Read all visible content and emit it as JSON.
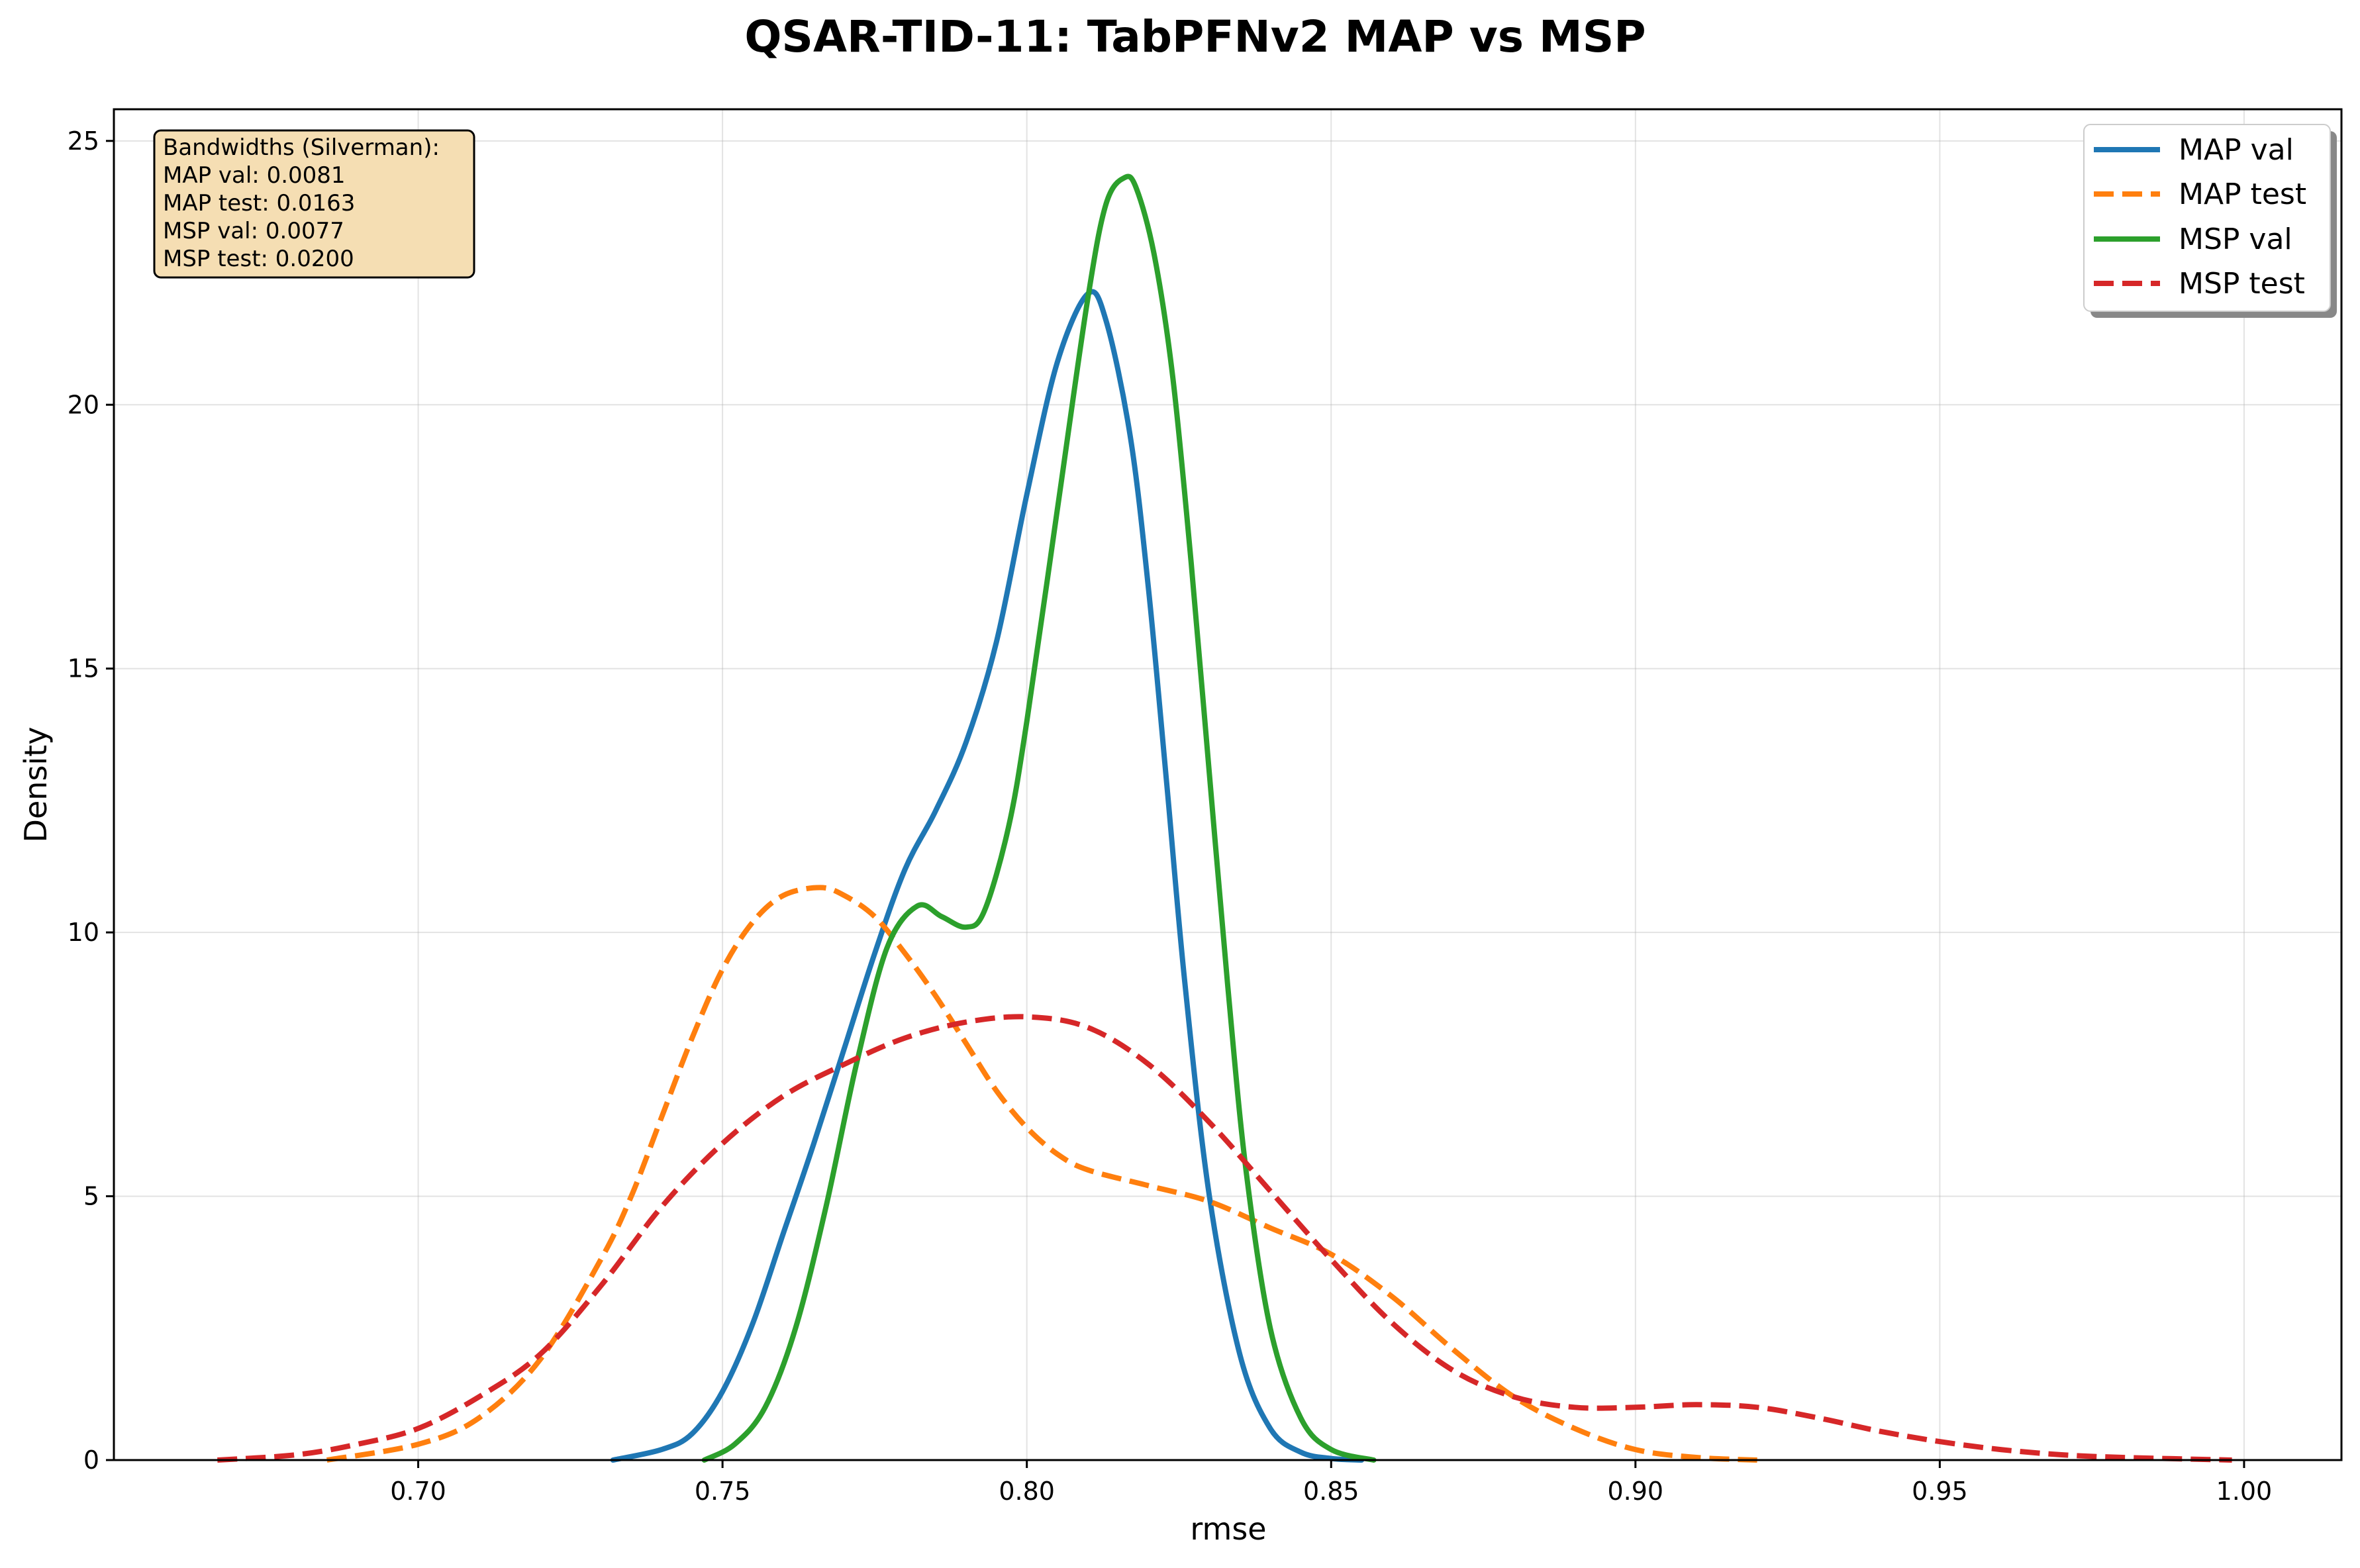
{
  "chart_data": {
    "type": "line",
    "title": "QSAR-TID-11: TabPFNv2 MAP vs MSP",
    "xlabel": "rmse",
    "ylabel": "Density",
    "xlim": [
      0.65,
      1.016
    ],
    "ylim": [
      0,
      25.6
    ],
    "x_ticks": [
      "0.70",
      "0.75",
      "0.80",
      "0.85",
      "0.90",
      "0.95",
      "1.00"
    ],
    "y_ticks": [
      "0",
      "5",
      "10",
      "15",
      "20",
      "25"
    ],
    "grid": true,
    "legend_position": "top-right",
    "annotation": {
      "lines": [
        "Bandwidths (Silverman):",
        "MAP val: 0.0081",
        "MAP test: 0.0163",
        "MSP val: 0.0077",
        "MSP test: 0.0200"
      ],
      "position": "top-left"
    },
    "series": [
      {
        "name": "MAP val",
        "color": "#1f77b4",
        "dash": "solid",
        "x": [
          0.732,
          0.74,
          0.745,
          0.75,
          0.755,
          0.76,
          0.765,
          0.77,
          0.775,
          0.78,
          0.785,
          0.79,
          0.795,
          0.8,
          0.805,
          0.81,
          0.813,
          0.817,
          0.82,
          0.823,
          0.826,
          0.83,
          0.835,
          0.84,
          0.845,
          0.85,
          0.855
        ],
        "y": [
          0.0,
          0.2,
          0.5,
          1.3,
          2.6,
          4.3,
          6.0,
          7.8,
          9.6,
          11.2,
          12.3,
          13.6,
          15.5,
          18.3,
          20.8,
          22.1,
          21.6,
          19.4,
          16.5,
          12.8,
          9.0,
          5.0,
          2.0,
          0.6,
          0.15,
          0.03,
          0.0
        ]
      },
      {
        "name": "MAP test",
        "color": "#ff7f0e",
        "dash": "dashed",
        "x": [
          0.685,
          0.7,
          0.71,
          0.72,
          0.73,
          0.735,
          0.74,
          0.745,
          0.75,
          0.755,
          0.76,
          0.766,
          0.77,
          0.775,
          0.78,
          0.785,
          0.79,
          0.795,
          0.8,
          0.805,
          0.81,
          0.82,
          0.83,
          0.84,
          0.85,
          0.86,
          0.87,
          0.88,
          0.89,
          0.9,
          0.91,
          0.92
        ],
        "y": [
          0.0,
          0.3,
          0.8,
          1.9,
          3.8,
          5.0,
          6.5,
          8.0,
          9.3,
          10.2,
          10.7,
          10.85,
          10.7,
          10.3,
          9.6,
          8.8,
          7.9,
          7.0,
          6.3,
          5.8,
          5.5,
          5.2,
          4.9,
          4.4,
          3.9,
          3.1,
          2.1,
          1.2,
          0.6,
          0.2,
          0.05,
          0.0
        ]
      },
      {
        "name": "MSP val",
        "color": "#2ca02c",
        "dash": "solid",
        "x": [
          0.747,
          0.752,
          0.757,
          0.762,
          0.767,
          0.772,
          0.777,
          0.782,
          0.786,
          0.79,
          0.793,
          0.797,
          0.8,
          0.805,
          0.81,
          0.813,
          0.816,
          0.818,
          0.821,
          0.824,
          0.827,
          0.83,
          0.833,
          0.836,
          0.84,
          0.845,
          0.85,
          0.857
        ],
        "y": [
          0.0,
          0.3,
          1.0,
          2.5,
          4.8,
          7.5,
          9.7,
          10.5,
          10.3,
          10.1,
          10.4,
          12.0,
          14.0,
          18.0,
          22.0,
          23.8,
          24.3,
          24.1,
          22.8,
          20.5,
          17.0,
          13.0,
          9.0,
          5.5,
          2.5,
          0.8,
          0.2,
          0.0
        ]
      },
      {
        "name": "MSP test",
        "color": "#d62728",
        "dash": "dashed",
        "x": [
          0.667,
          0.68,
          0.69,
          0.7,
          0.71,
          0.72,
          0.73,
          0.74,
          0.75,
          0.76,
          0.77,
          0.78,
          0.79,
          0.8,
          0.81,
          0.82,
          0.83,
          0.84,
          0.85,
          0.86,
          0.87,
          0.88,
          0.89,
          0.9,
          0.91,
          0.92,
          0.93,
          0.94,
          0.95,
          0.96,
          0.97,
          0.98,
          0.998
        ],
        "y": [
          0.0,
          0.1,
          0.3,
          0.6,
          1.2,
          2.0,
          3.3,
          4.8,
          6.0,
          6.9,
          7.5,
          8.0,
          8.3,
          8.4,
          8.2,
          7.5,
          6.4,
          5.1,
          3.8,
          2.6,
          1.7,
          1.2,
          1.0,
          1.0,
          1.05,
          1.0,
          0.8,
          0.55,
          0.35,
          0.2,
          0.1,
          0.05,
          0.0
        ]
      }
    ]
  }
}
